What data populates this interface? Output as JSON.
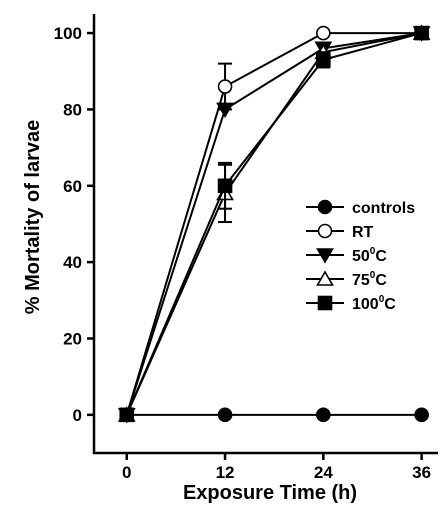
{
  "chart_data": {
    "type": "line",
    "title": "",
    "xlabel": "Exposure Time (h)",
    "ylabel": "% Mortality of larvae",
    "x": [
      0,
      12,
      24,
      36
    ],
    "xticks": [
      "0",
      "12",
      "24",
      "36"
    ],
    "yticks": [
      "0",
      "20",
      "40",
      "60",
      "80",
      "100"
    ],
    "xlim": [
      -4,
      38
    ],
    "ylim": [
      -10,
      105
    ],
    "grid": false,
    "legend_position": "right",
    "series": [
      {
        "name": "controls",
        "values": [
          0,
          0,
          0,
          0
        ],
        "marker": "circle-filled",
        "errors": [
          0,
          0,
          0,
          0
        ]
      },
      {
        "name": "RT",
        "values": [
          0,
          86,
          100,
          100
        ],
        "marker": "circle-open",
        "errors": [
          0,
          6,
          0,
          0
        ]
      },
      {
        "name": "50⁰C",
        "values": [
          0,
          80,
          96,
          100
        ],
        "marker": "triangle-down-filled",
        "errors": [
          0,
          0,
          0,
          0
        ]
      },
      {
        "name": "75⁰C",
        "values": [
          0,
          58,
          95,
          100
        ],
        "marker": "triangle-up-open",
        "errors": [
          0,
          7.5,
          0,
          0
        ]
      },
      {
        "name": "100⁰C",
        "values": [
          0,
          60,
          93,
          100
        ],
        "marker": "square-filled",
        "errors": [
          0,
          6,
          2,
          0
        ]
      }
    ],
    "legend": [
      {
        "base": "controls",
        "sup": "",
        "suffix": ""
      },
      {
        "base": "RT",
        "sup": "",
        "suffix": ""
      },
      {
        "base": "50",
        "sup": "0",
        "suffix": "C"
      },
      {
        "base": "75",
        "sup": "0",
        "suffix": "C"
      },
      {
        "base": "100",
        "sup": "0",
        "suffix": "C"
      }
    ]
  }
}
